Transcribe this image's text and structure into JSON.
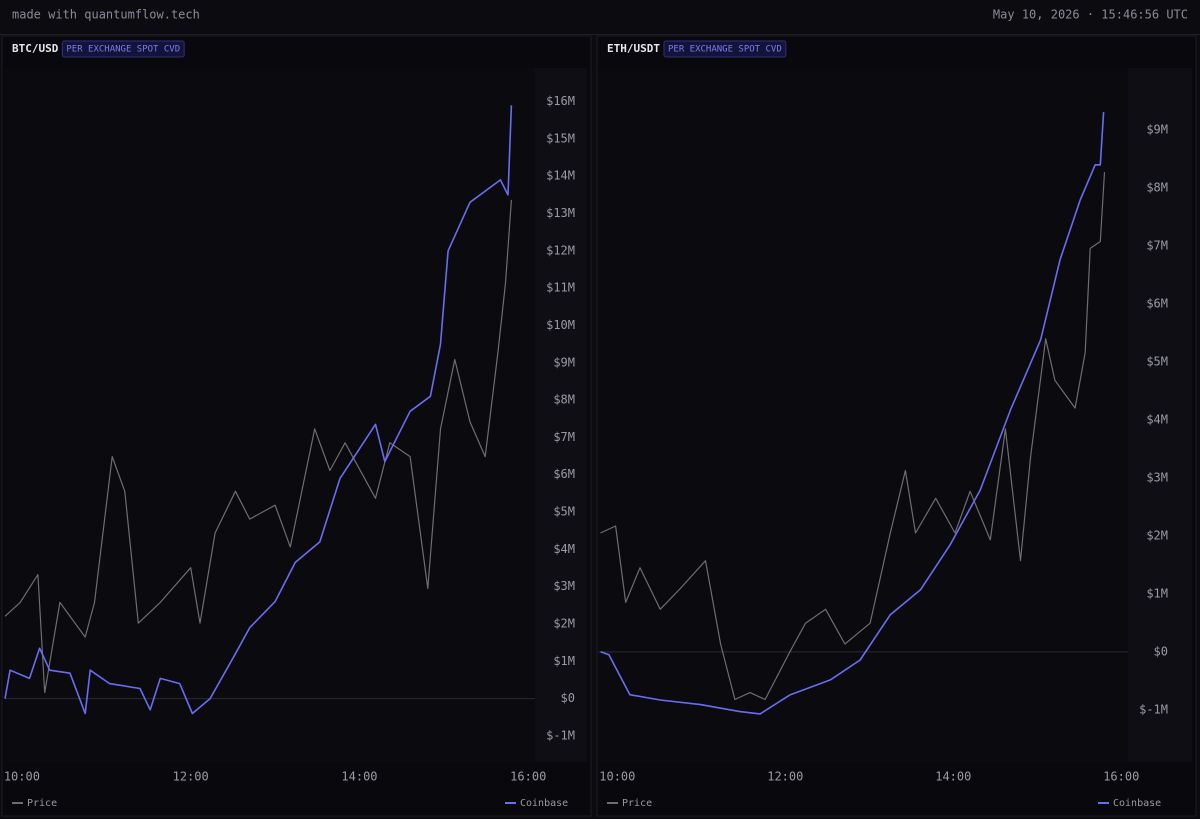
{
  "header": {
    "brand": "made with quantumflow.tech",
    "timestamp": "May 10, 2026 · 15:46:56 UTC"
  },
  "chart_data": [
    {
      "type": "line",
      "title": "BTC/USD",
      "subtitle": "PER EXCHANGE SPOT CVD",
      "xlim": [
        9.8,
        16.08
      ],
      "xticks": [
        {
          "value": 10,
          "label": "10:00"
        },
        {
          "value": 12,
          "label": "12:00"
        },
        {
          "value": 14,
          "label": "14:00"
        },
        {
          "value": 16,
          "label": "16:00"
        }
      ],
      "ylim": [
        -1700000,
        16900000
      ],
      "yticks": [
        {
          "value": -1000000,
          "label": "$-1M"
        },
        {
          "value": 0,
          "label": "$0"
        },
        {
          "value": 1000000,
          "label": "$1M"
        },
        {
          "value": 2000000,
          "label": "$2M"
        },
        {
          "value": 3000000,
          "label": "$3M"
        },
        {
          "value": 4000000,
          "label": "$4M"
        },
        {
          "value": 5000000,
          "label": "$5M"
        },
        {
          "value": 6000000,
          "label": "$6M"
        },
        {
          "value": 7000000,
          "label": "$7M"
        },
        {
          "value": 8000000,
          "label": "$8M"
        },
        {
          "value": 9000000,
          "label": "$9M"
        },
        {
          "value": 10000000,
          "label": "$10M"
        },
        {
          "value": 11000000,
          "label": "$11M"
        },
        {
          "value": 12000000,
          "label": "$12M"
        },
        {
          "value": 13000000,
          "label": "$13M"
        },
        {
          "value": 14000000,
          "label": "$14M"
        },
        {
          "value": 15000000,
          "label": "$15M"
        },
        {
          "value": 16000000,
          "label": "$16M"
        }
      ],
      "y2lim": [
        0,
        100
      ],
      "series": [
        {
          "name": "Price",
          "color": "#6e6e72",
          "axis": "y2",
          "x": [
            9.8,
            9.98,
            10.19,
            10.27,
            10.45,
            10.75,
            10.86,
            11.07,
            11.22,
            11.38,
            11.64,
            12.0,
            12.11,
            12.29,
            12.53,
            12.7,
            13.0,
            13.18,
            13.47,
            13.65,
            13.83,
            14.19,
            14.36,
            14.6,
            14.81,
            14.96,
            15.13,
            15.31,
            15.49,
            15.64,
            15.73,
            15.8
          ],
          "values": [
            21,
            23,
            27,
            10,
            23,
            18,
            23,
            44,
            39,
            20,
            23,
            28,
            20,
            33,
            39,
            35,
            37,
            31,
            48,
            42,
            46,
            38,
            46,
            44,
            25,
            48,
            58,
            49,
            44,
            59,
            69,
            81
          ]
        },
        {
          "name": "Coinbase",
          "color": "#6c6cf2",
          "x": [
            9.8,
            9.86,
            10.09,
            10.21,
            10.33,
            10.57,
            10.75,
            10.81,
            11.04,
            11.4,
            11.52,
            11.64,
            11.87,
            12.02,
            12.23,
            12.53,
            12.7,
            13.0,
            13.24,
            13.53,
            13.77,
            14.19,
            14.3,
            14.6,
            14.84,
            14.96,
            15.05,
            15.31,
            15.67,
            15.76,
            15.8
          ],
          "values": [
            0,
            760000,
            540000,
            1350000,
            760000,
            680000,
            -400000,
            760000,
            400000,
            270000,
            -300000,
            540000,
            400000,
            -400000,
            0,
            1200000,
            1900000,
            2600000,
            3650000,
            4200000,
            5900000,
            7350000,
            6350000,
            7700000,
            8100000,
            9500000,
            12000000,
            13300000,
            13900000,
            13500000,
            15900000
          ]
        }
      ]
    },
    {
      "type": "line",
      "title": "ETH/USDT",
      "subtitle": "PER EXCHANGE SPOT CVD",
      "xlim": [
        9.77,
        16.08
      ],
      "xticks": [
        {
          "value": 10,
          "label": "10:00"
        },
        {
          "value": 12,
          "label": "12:00"
        },
        {
          "value": 14,
          "label": "14:00"
        },
        {
          "value": 16,
          "label": "16:00"
        }
      ],
      "ylim": [
        -1900000,
        10070000
      ],
      "yticks": [
        {
          "value": -1000000,
          "label": "$-1M"
        },
        {
          "value": 0,
          "label": "$0"
        },
        {
          "value": 1000000,
          "label": "$1M"
        },
        {
          "value": 2000000,
          "label": "$2M"
        },
        {
          "value": 3000000,
          "label": "$3M"
        },
        {
          "value": 4000000,
          "label": "$4M"
        },
        {
          "value": 5000000,
          "label": "$5M"
        },
        {
          "value": 6000000,
          "label": "$6M"
        },
        {
          "value": 7000000,
          "label": "$7M"
        },
        {
          "value": 8000000,
          "label": "$8M"
        },
        {
          "value": 9000000,
          "label": "$9M"
        }
      ],
      "y2lim": [
        0,
        100
      ],
      "series": [
        {
          "name": "Price",
          "color": "#6e6e72",
          "axis": "y2",
          "x": [
            9.8,
            9.98,
            10.1,
            10.27,
            10.51,
            10.75,
            11.05,
            11.23,
            11.4,
            11.58,
            11.76,
            12.06,
            12.24,
            12.48,
            12.71,
            13.01,
            13.25,
            13.43,
            13.55,
            13.79,
            14.02,
            14.2,
            14.44,
            14.62,
            14.8,
            14.92,
            15.1,
            15.21,
            15.45,
            15.57,
            15.63,
            15.75,
            15.8
          ],
          "values": [
            33,
            34,
            23,
            28,
            22,
            25,
            29,
            17,
            9,
            10,
            9,
            16,
            20,
            22,
            17,
            20,
            33,
            42,
            33,
            38,
            33,
            39,
            32,
            48,
            29,
            44,
            61,
            55,
            51,
            59,
            74,
            75,
            85
          ]
        },
        {
          "name": "Coinbase",
          "color": "#6c6cf2",
          "x": [
            9.8,
            9.9,
            10.15,
            10.51,
            10.99,
            11.46,
            11.7,
            12.06,
            12.54,
            12.89,
            13.25,
            13.61,
            13.96,
            14.32,
            14.68,
            15.04,
            15.27,
            15.51,
            15.69,
            15.75,
            15.79
          ],
          "values": [
            0,
            -50000,
            -740000,
            -830000,
            -910000,
            -1030000,
            -1070000,
            -740000,
            -480000,
            -140000,
            640000,
            1070000,
            1840000,
            2790000,
            4170000,
            5380000,
            6760000,
            7790000,
            8400000,
            8400000,
            9310000
          ]
        }
      ]
    }
  ]
}
